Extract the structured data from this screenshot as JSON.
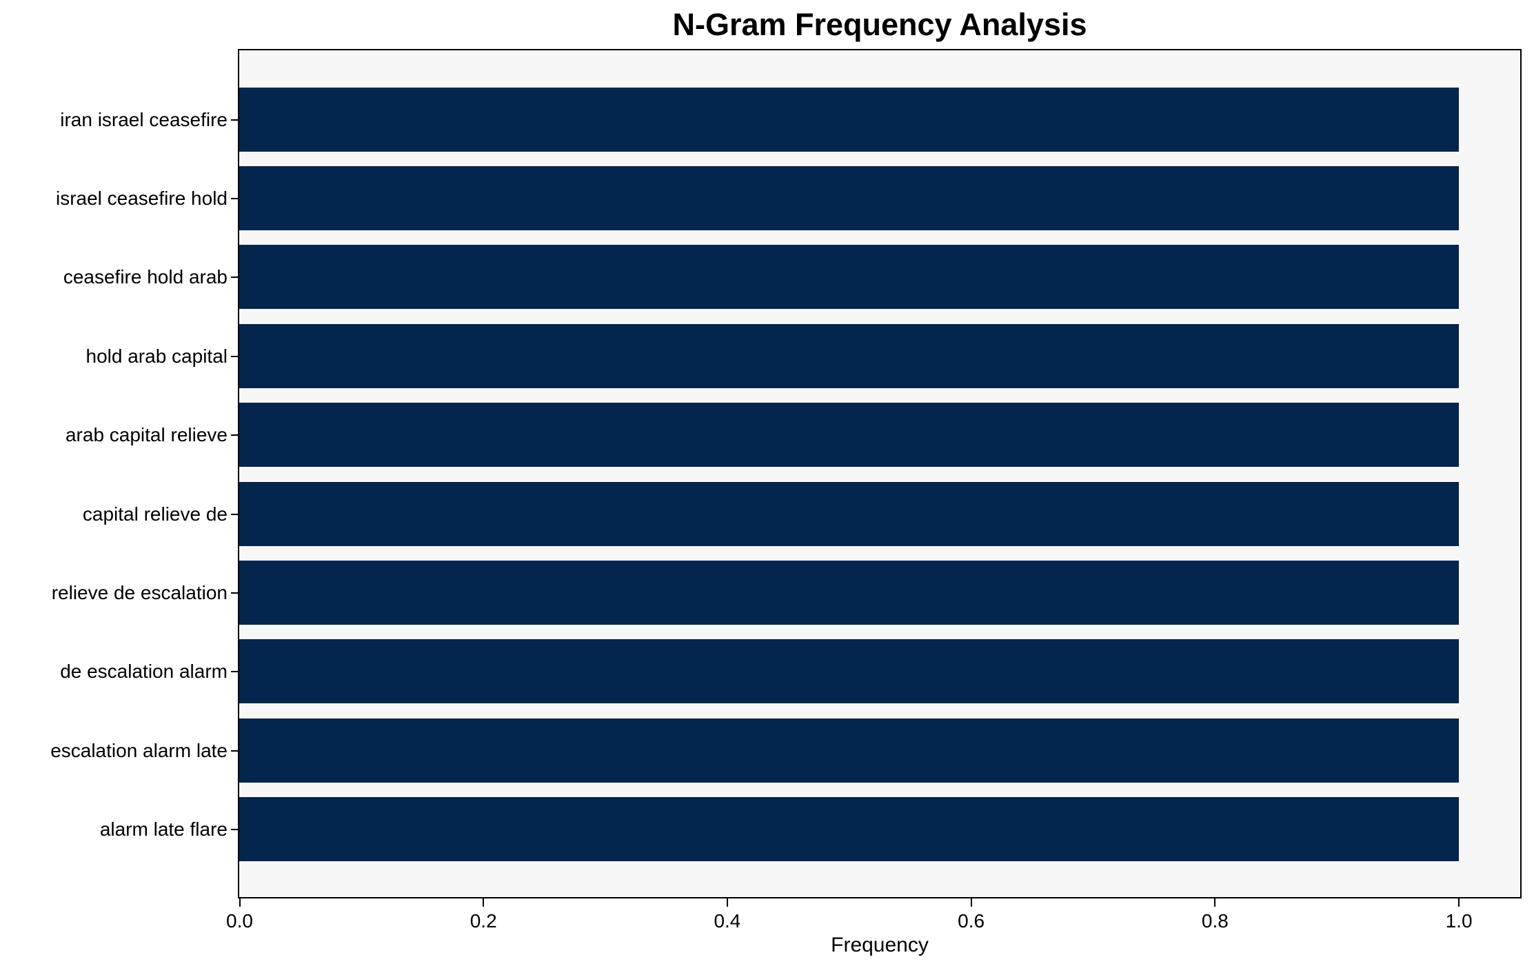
{
  "chart_data": {
    "type": "bar",
    "orientation": "horizontal",
    "title": "N-Gram Frequency Analysis",
    "xlabel": "Frequency",
    "ylabel": "",
    "categories": [
      "iran israel ceasefire",
      "israel ceasefire hold",
      "ceasefire hold arab",
      "hold arab capital",
      "arab capital relieve",
      "capital relieve de",
      "relieve de escalation",
      "de escalation alarm",
      "escalation alarm late",
      "alarm late flare"
    ],
    "values": [
      1.0,
      1.0,
      1.0,
      1.0,
      1.0,
      1.0,
      1.0,
      1.0,
      1.0,
      1.0
    ],
    "xlim": [
      0,
      1.05
    ],
    "xticks": [
      "0.0",
      "0.2",
      "0.4",
      "0.6",
      "0.8",
      "1.0"
    ],
    "xtick_values": [
      0.0,
      0.2,
      0.4,
      0.6,
      0.8,
      1.0
    ],
    "grid": false,
    "legend_position": "none",
    "bar_color": "#03254e",
    "plot_background": "#f7f7f7",
    "figure_background": "#ffffff",
    "text_color": "#000000"
  }
}
